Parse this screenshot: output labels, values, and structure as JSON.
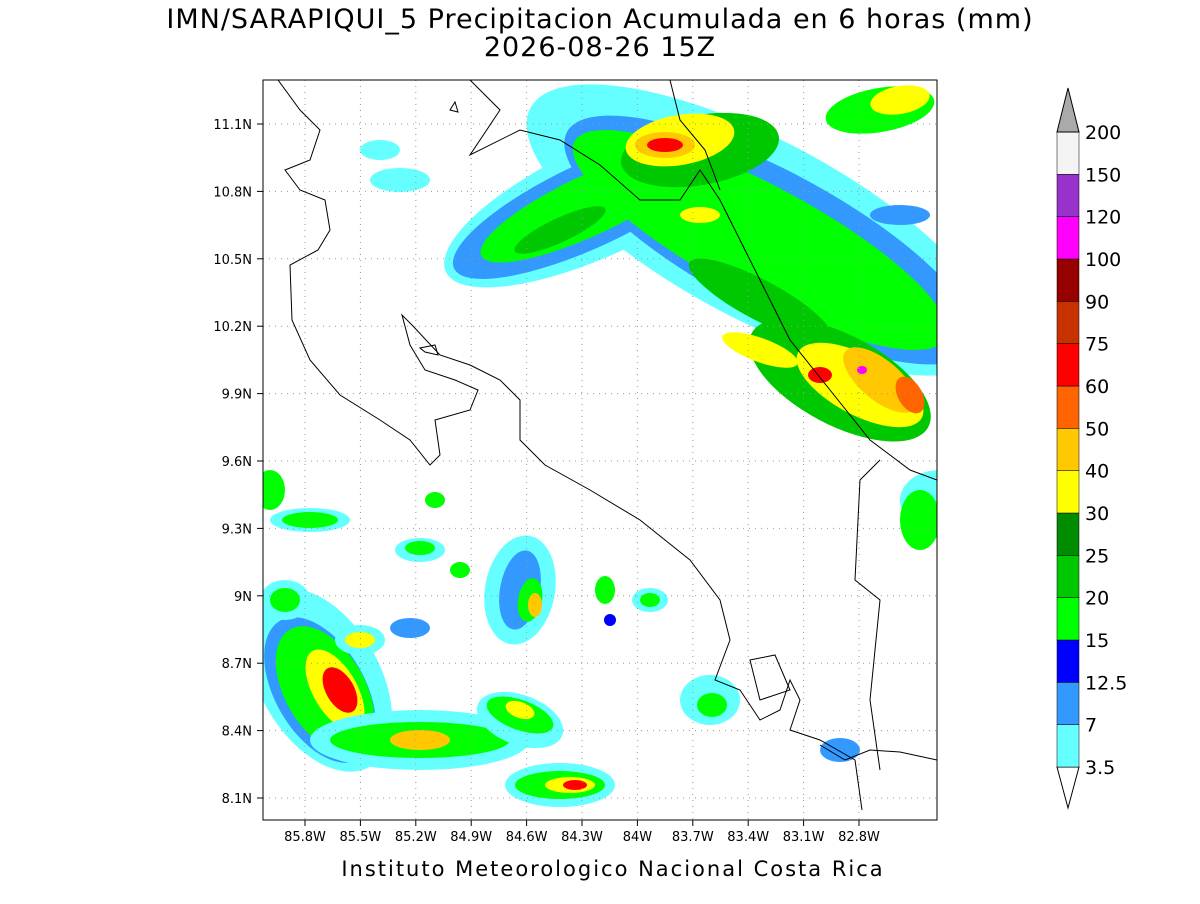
{
  "header": {
    "title": "IMN/SARAPIQUI_5 Precipitacion Acumulada en 6 horas (mm)",
    "subtitle": "2026-08-26 15Z"
  },
  "map": {
    "lat_labels": [
      "11.1N",
      "10.8N",
      "10.5N",
      "10.2N",
      "9.9N",
      "9.6N",
      "9.3N",
      "9N",
      "8.7N",
      "8.4N",
      "8.1N"
    ],
    "lon_labels": [
      "85.8W",
      "85.5W",
      "85.2W",
      "84.9W",
      "84.6W",
      "84.3W",
      "84W",
      "83.7W",
      "83.4W",
      "83.1W",
      "82.8W"
    ]
  },
  "colorbar": {
    "levels": [
      3.5,
      7,
      12.5,
      15,
      20,
      25,
      30,
      40,
      50,
      60,
      75,
      90,
      100,
      120,
      150,
      200
    ],
    "colors": [
      "#ffffff",
      "#66ffff",
      "#3399ff",
      "#0000ff",
      "#00ff00",
      "#00c800",
      "#008c00",
      "#ffff00",
      "#ffc800",
      "#ff6400",
      "#ff0000",
      "#c83200",
      "#960000",
      "#ff00ff",
      "#9932cc",
      "#f4f4f4",
      "#aaaaaa"
    ]
  },
  "footer": "Instituto Meteorologico Nacional Costa Rica"
}
